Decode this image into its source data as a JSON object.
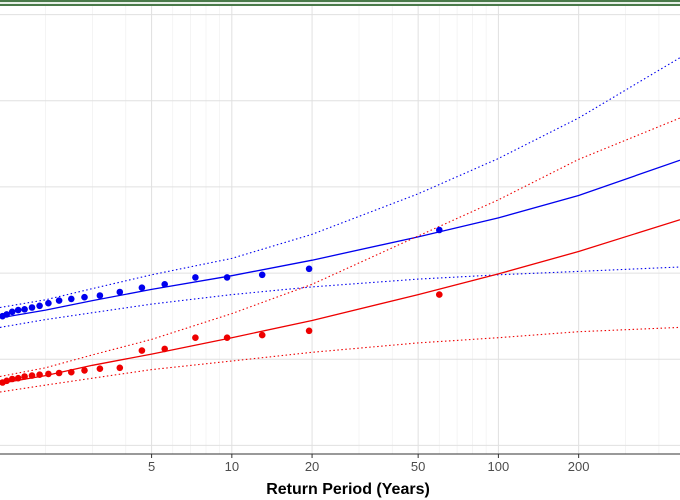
{
  "chart_data": {
    "type": "scatter",
    "title": "",
    "xlabel": "Return Period (Years)",
    "ylabel": "",
    "x_scale": "log",
    "xlim": [
      1.35,
      480
    ],
    "ylim": [
      0.0,
      5.2
    ],
    "x_ticks": [
      5,
      10,
      20,
      50,
      100,
      200
    ],
    "y_gridlines": [
      0.1,
      1.1,
      2.1,
      3.1,
      4.1,
      5.1
    ],
    "grid": true,
    "legend": "none",
    "colors": {
      "blue": "#0000ee",
      "red": "#ee0000",
      "grid": "#e0e0e0",
      "frame": "#333333",
      "top_band": "#4a7a4a"
    },
    "series": [
      {
        "kind": "points",
        "color": "#0000ee",
        "x": [
          1.38,
          1.43,
          1.5,
          1.58,
          1.67,
          1.78,
          1.9,
          2.05,
          2.25,
          2.5,
          2.8,
          3.2,
          3.8,
          4.6,
          5.6,
          7.3,
          9.6,
          13,
          19.5,
          60
        ],
        "y": [
          1.6,
          1.62,
          1.65,
          1.67,
          1.68,
          1.7,
          1.72,
          1.75,
          1.78,
          1.8,
          1.82,
          1.84,
          1.88,
          1.93,
          1.97,
          2.05,
          2.05,
          2.08,
          2.15,
          2.6
        ]
      },
      {
        "kind": "points",
        "color": "#ee0000",
        "x": [
          1.38,
          1.43,
          1.5,
          1.58,
          1.67,
          1.78,
          1.9,
          2.05,
          2.25,
          2.5,
          2.8,
          3.2,
          3.8,
          4.6,
          5.6,
          7.3,
          9.6,
          13,
          19.5,
          60
        ],
        "y": [
          0.83,
          0.85,
          0.87,
          0.88,
          0.9,
          0.91,
          0.92,
          0.93,
          0.94,
          0.95,
          0.97,
          0.99,
          1.0,
          1.2,
          1.22,
          1.35,
          1.35,
          1.38,
          1.43,
          1.85
        ]
      },
      {
        "kind": "fit",
        "style": "solid",
        "color": "#0000ee",
        "x": [
          1.35,
          2,
          3,
          5,
          10,
          20,
          50,
          100,
          200,
          480
        ],
        "y": [
          1.58,
          1.67,
          1.78,
          1.91,
          2.07,
          2.25,
          2.52,
          2.74,
          3.0,
          3.41
        ]
      },
      {
        "kind": "ci",
        "style": "dotted",
        "color": "#0000ee",
        "x": [
          1.35,
          2,
          3,
          5,
          10,
          20,
          50,
          100,
          200,
          480
        ],
        "y": [
          1.7,
          1.79,
          1.92,
          2.08,
          2.27,
          2.55,
          3.02,
          3.43,
          3.9,
          4.6
        ]
      },
      {
        "kind": "ci",
        "style": "dotted",
        "color": "#0000ee",
        "x": [
          1.35,
          2,
          3,
          5,
          10,
          20,
          50,
          100,
          200,
          480
        ],
        "y": [
          1.47,
          1.56,
          1.64,
          1.74,
          1.85,
          1.94,
          2.03,
          2.08,
          2.12,
          2.17
        ]
      },
      {
        "kind": "fit",
        "style": "solid",
        "color": "#ee0000",
        "x": [
          1.35,
          2,
          3,
          5,
          10,
          20,
          50,
          100,
          200,
          480
        ],
        "y": [
          0.82,
          0.91,
          1.03,
          1.16,
          1.35,
          1.55,
          1.85,
          2.09,
          2.35,
          2.72
        ]
      },
      {
        "kind": "ci",
        "style": "dotted",
        "color": "#ee0000",
        "x": [
          1.35,
          2,
          3,
          5,
          10,
          20,
          50,
          100,
          200,
          480
        ],
        "y": [
          0.9,
          1.0,
          1.15,
          1.33,
          1.63,
          1.97,
          2.53,
          2.95,
          3.42,
          3.9
        ]
      },
      {
        "kind": "ci",
        "style": "dotted",
        "color": "#ee0000",
        "x": [
          1.35,
          2,
          3,
          5,
          10,
          20,
          50,
          100,
          200,
          480
        ],
        "y": [
          0.72,
          0.8,
          0.88,
          0.98,
          1.08,
          1.18,
          1.29,
          1.35,
          1.42,
          1.47
        ]
      }
    ]
  }
}
